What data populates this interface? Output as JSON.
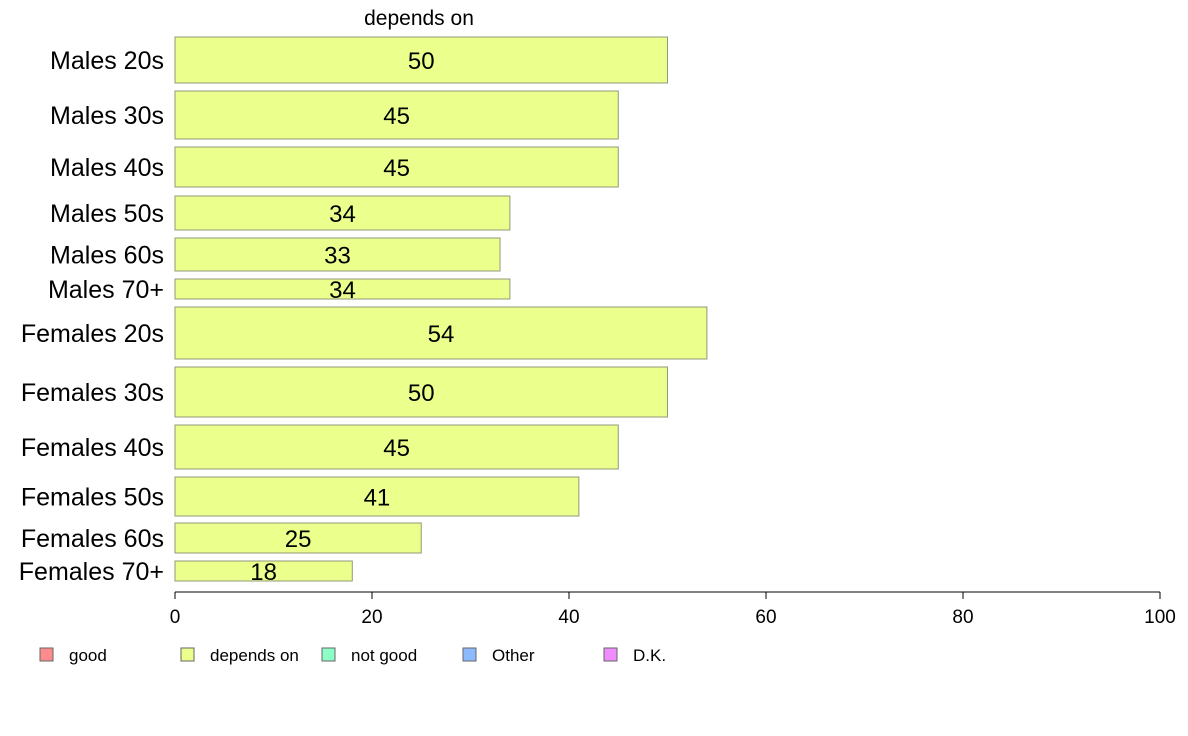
{
  "chart_data": {
    "type": "bar",
    "orientation": "horizontal",
    "title": "depends on",
    "categories": [
      "Males 20s",
      "Males 30s",
      "Males 40s",
      "Males 50s",
      "Males 60s",
      "Males 70+",
      "Females 20s",
      "Females 30s",
      "Females 40s",
      "Females 50s",
      "Females 60s",
      "Females 70+"
    ],
    "values": [
      50,
      45,
      45,
      34,
      33,
      34,
      54,
      50,
      45,
      41,
      25,
      18
    ],
    "bar_color": "#ebff8c",
    "bar_stroke": "#8f9a7a",
    "xlim": [
      0,
      100
    ],
    "xticks": [
      0,
      20,
      40,
      60,
      80,
      100
    ],
    "grid": false,
    "legend": {
      "placement": "bottom",
      "entries": [
        {
          "label": "good",
          "color": "#ff8c8c"
        },
        {
          "label": "depends on",
          "color": "#ebff8c"
        },
        {
          "label": "not good",
          "color": "#8cffc6"
        },
        {
          "label": "Other",
          "color": "#8cbaff"
        },
        {
          "label": "D.K.",
          "color": "#f08cff"
        }
      ]
    }
  }
}
